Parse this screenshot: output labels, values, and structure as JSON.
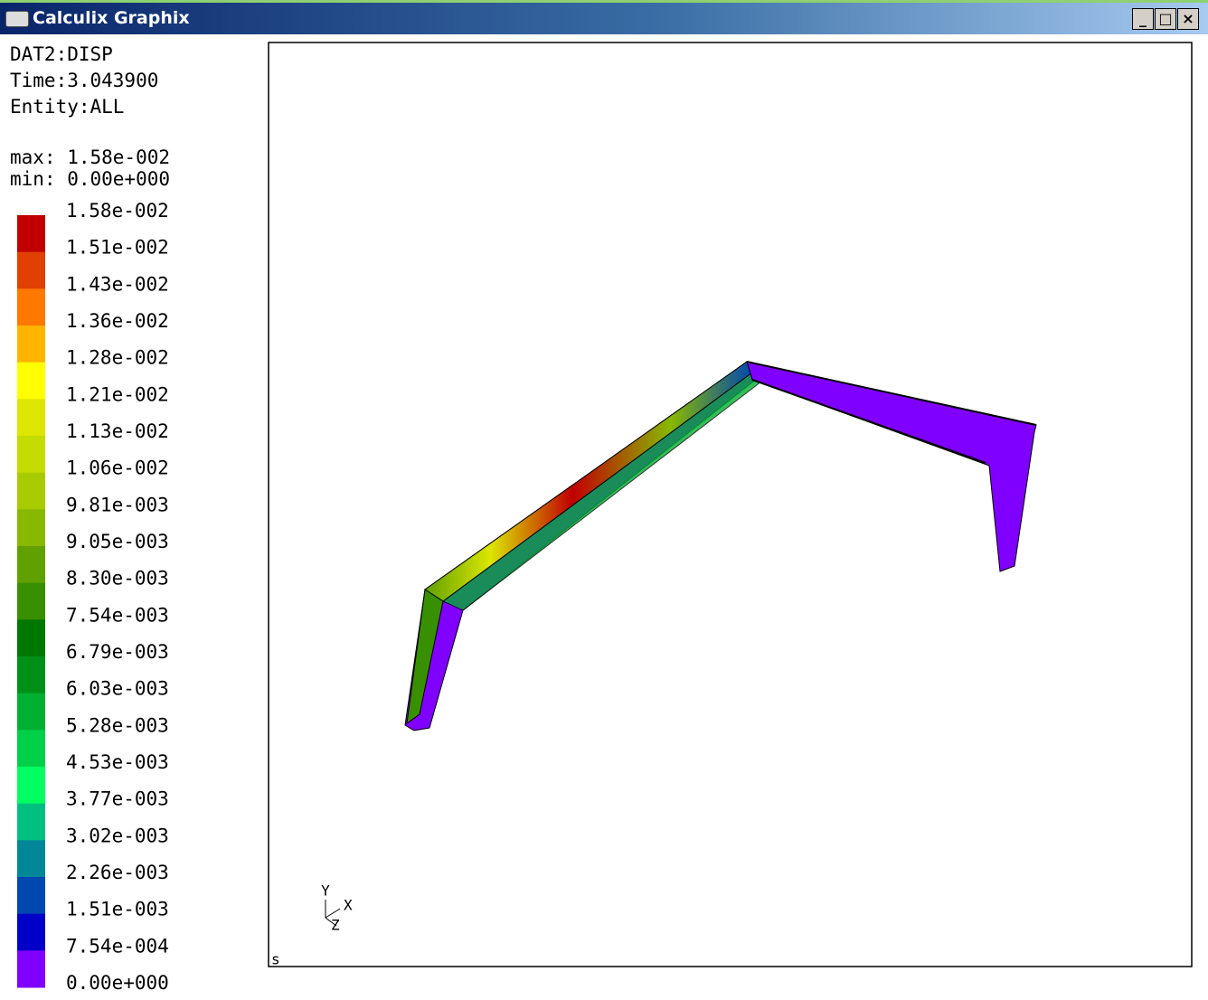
{
  "window": {
    "title": "Calculix Graphix"
  },
  "info": {
    "dataset": "DAT2:DISP",
    "time": "Time:3.043900",
    "entity": "Entity:ALL",
    "max": "max: 1.58e-002",
    "min": "min: 0.00e+000"
  },
  "legend": {
    "labels": [
      "1.58e-002",
      "1.51e-002",
      "1.43e-002",
      "1.36e-002",
      "1.28e-002",
      "1.21e-002",
      "1.13e-002",
      "1.06e-002",
      "9.81e-003",
      "9.05e-003",
      "8.30e-003",
      "7.54e-003",
      "6.79e-003",
      "6.03e-003",
      "5.28e-003",
      "4.53e-003",
      "3.77e-003",
      "3.02e-003",
      "2.26e-003",
      "1.51e-003",
      "7.54e-004",
      "0.00e+000"
    ],
    "colors": [
      "#c00000",
      "#e04000",
      "#ff7800",
      "#ffb400",
      "#ffff00",
      "#dce600",
      "#c4dc00",
      "#a8cc00",
      "#88b800",
      "#60a000",
      "#389000",
      "#007800",
      "#009018",
      "#00b030",
      "#00d048",
      "#00ff60",
      "#00c080",
      "#008898",
      "#0048b0",
      "#0000c8",
      "#8000ff"
    ]
  },
  "viewport": {
    "mark": "s",
    "axis_y": "Y",
    "axis_x": "X",
    "axis_z": "Z"
  }
}
